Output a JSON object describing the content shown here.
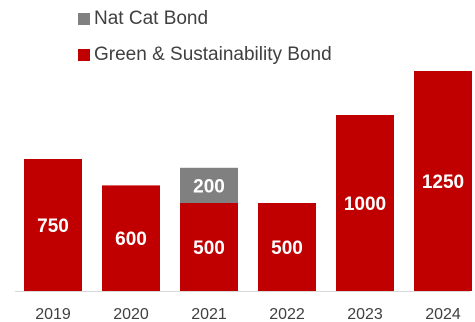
{
  "chart_data": {
    "type": "bar",
    "stacked": true,
    "categories": [
      "2019",
      "2020",
      "2021",
      "2022",
      "2023",
      "2024"
    ],
    "series": [
      {
        "name": "Green & Sustainability Bond",
        "color": "#c00000",
        "values": [
          750,
          600,
          500,
          500,
          1000,
          1250
        ]
      },
      {
        "name": "Nat Cat Bond",
        "color": "#808080",
        "values": [
          0,
          0,
          200,
          0,
          0,
          0
        ]
      }
    ],
    "ylim": [
      0,
      1250
    ],
    "grid": false,
    "legend": "top-left"
  }
}
